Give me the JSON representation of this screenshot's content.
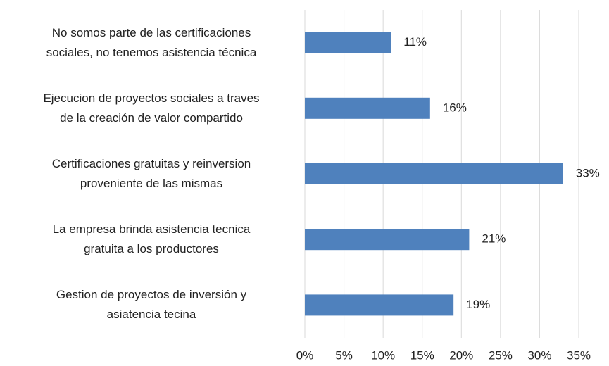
{
  "chart_data": {
    "type": "bar",
    "orientation": "horizontal",
    "categories": [
      "No somos parte de las certificaciones\nsociales, no tenemos asistencia técnica",
      "Ejecucion de proyectos sociales a traves\nde la creación de valor compartido",
      "Certificaciones gratuitas y reinversion\nproveniente de las mismas",
      "La empresa brinda asistencia tecnica\ngratuita a los productores",
      "Gestion de proyectos de inversión y\nasiatencia tecina"
    ],
    "values": [
      11,
      16,
      33,
      21,
      19
    ],
    "value_labels": [
      "11%",
      "16%",
      "33%",
      "21%",
      "19%"
    ],
    "color": "#4f81bd",
    "xlim": [
      0,
      35
    ],
    "xticks": [
      {
        "value": 0,
        "label": "0%"
      },
      {
        "value": 5,
        "label": "5%"
      },
      {
        "value": 10,
        "label": "10%"
      },
      {
        "value": 15,
        "label": "15%"
      },
      {
        "value": 20,
        "label": "20%"
      },
      {
        "value": 25,
        "label": "25%"
      },
      {
        "value": 30,
        "label": "30%"
      },
      {
        "value": 35,
        "label": "35%"
      }
    ],
    "grid": true
  }
}
